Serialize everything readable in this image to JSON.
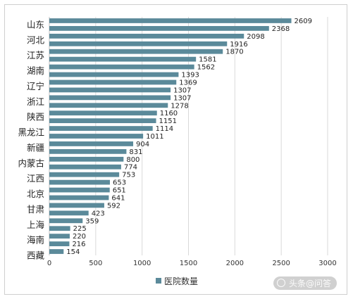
{
  "chart_data": {
    "type": "bar",
    "orientation": "horizontal",
    "title": "",
    "xlabel": "",
    "ylabel": "",
    "xlim": [
      0,
      3000
    ],
    "xticks": [
      0,
      500,
      1000,
      1500,
      2000,
      2500,
      3000
    ],
    "grid": "vertical",
    "legend_position": "bottom",
    "bar_color": "#5b8a9a",
    "series": [
      {
        "name": "医院数量",
        "values": [
          2609,
          2368,
          2098,
          1916,
          1870,
          1581,
          1562,
          1393,
          1369,
          1307,
          1307,
          1278,
          1160,
          1151,
          1114,
          1011,
          904,
          831,
          800,
          774,
          753,
          653,
          651,
          641,
          592,
          423,
          359,
          225,
          220,
          216,
          154
        ]
      }
    ],
    "category_labels": [
      {
        "label": "山东",
        "index": 0
      },
      {
        "label": "河北",
        "index": 2
      },
      {
        "label": "江苏",
        "index": 4
      },
      {
        "label": "湖南",
        "index": 6
      },
      {
        "label": "辽宁",
        "index": 8
      },
      {
        "label": "浙江",
        "index": 10
      },
      {
        "label": "陕西",
        "index": 12
      },
      {
        "label": "黑龙江",
        "index": 14
      },
      {
        "label": "新疆",
        "index": 16
      },
      {
        "label": "内蒙古",
        "index": 18
      },
      {
        "label": "江西",
        "index": 20
      },
      {
        "label": "北京",
        "index": 22
      },
      {
        "label": "甘肃",
        "index": 24
      },
      {
        "label": "上海",
        "index": 26
      },
      {
        "label": "海南",
        "index": 28
      },
      {
        "label": "西藏",
        "index": 30
      }
    ]
  },
  "watermark": "头条@问答"
}
